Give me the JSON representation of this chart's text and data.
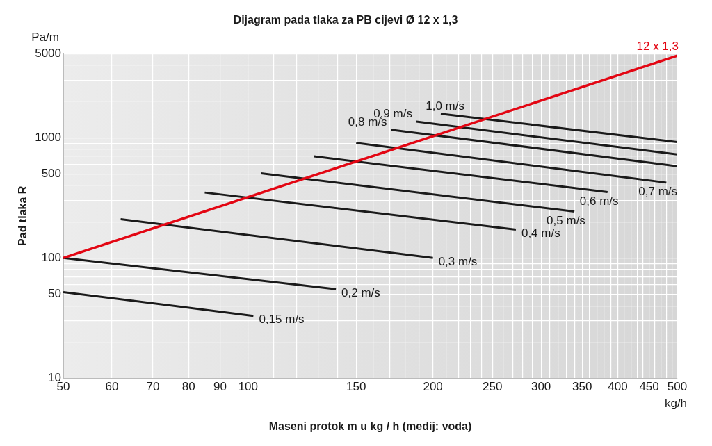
{
  "chart_data": {
    "type": "line",
    "title": "Dijagram pada tlaka za PB cijevi Ø 12 x 1,3",
    "xlabel": "Maseni protok m u kg / h (medij: voda)",
    "ylabel": "Pad tlaka R",
    "annotations": [
      "Pa/m",
      "kg/h"
    ],
    "log": "xy",
    "grid": true,
    "legend": false,
    "marker": "none",
    "line_style": "solid",
    "xlim": [
      50,
      500
    ],
    "ylim": [
      10,
      5000
    ],
    "xticks": [
      50,
      60,
      70,
      80,
      90,
      100,
      {
        "value": 110,
        "label": null
      },
      {
        "value": 120,
        "label": null
      },
      {
        "value": 130,
        "label": null
      },
      {
        "value": 140,
        "label": null
      },
      150,
      {
        "value": 160,
        "label": null
      },
      {
        "value": 170,
        "label": null
      },
      {
        "value": 180,
        "label": null
      },
      {
        "value": 190,
        "label": null
      },
      200,
      {
        "value": 210,
        "label": null
      },
      {
        "value": 220,
        "label": null
      },
      {
        "value": 230,
        "label": null
      },
      {
        "value": 240,
        "label": null
      },
      250,
      {
        "value": 260,
        "label": null
      },
      {
        "value": 270,
        "label": null
      },
      {
        "value": 280,
        "label": null
      },
      {
        "value": 290,
        "label": null
      },
      300,
      {
        "value": 310,
        "label": null
      },
      {
        "value": 320,
        "label": null
      },
      {
        "value": 330,
        "label": null
      },
      {
        "value": 340,
        "label": null
      },
      350,
      {
        "value": 360,
        "label": null
      },
      {
        "value": 370,
        "label": null
      },
      {
        "value": 380,
        "label": null
      },
      {
        "value": 390,
        "label": null
      },
      400,
      {
        "value": 410,
        "label": null
      },
      {
        "value": 420,
        "label": null
      },
      {
        "value": 430,
        "label": null
      },
      {
        "value": 440,
        "label": null
      },
      450,
      {
        "value": 460,
        "label": null
      },
      {
        "value": 470,
        "label": null
      },
      {
        "value": 480,
        "label": null
      },
      {
        "value": 490,
        "label": null
      },
      500
    ],
    "yticks": [
      10,
      {
        "value": 20,
        "label": null
      },
      {
        "value": 30,
        "label": null
      },
      {
        "value": 40,
        "label": null
      },
      50,
      {
        "value": 60,
        "label": null
      },
      {
        "value": 70,
        "label": null
      },
      {
        "value": 80,
        "label": null
      },
      {
        "value": 90,
        "label": null
      },
      100,
      {
        "value": 200,
        "label": null
      },
      {
        "value": 300,
        "label": null
      },
      {
        "value": 400,
        "label": null
      },
      500,
      {
        "value": 600,
        "label": null
      },
      {
        "value": 700,
        "label": null
      },
      {
        "value": 800,
        "label": null
      },
      {
        "value": 900,
        "label": null
      },
      1000,
      {
        "value": 2000,
        "label": null
      },
      {
        "value": 3000,
        "label": null
      },
      {
        "value": 4000,
        "label": null
      },
      5000
    ],
    "series": [
      {
        "name": "12 x 1,3",
        "color": "#e30613",
        "x": [
          50,
          500
        ],
        "values": [
          100,
          4800
        ]
      },
      {
        "name": "0,15 m/s",
        "color": "#1a1a1a",
        "x": [
          50,
          102
        ],
        "values": [
          52,
          33
        ]
      },
      {
        "name": "0,2 m/s",
        "color": "#1a1a1a",
        "x": [
          50,
          139
        ],
        "values": [
          100,
          55
        ]
      },
      {
        "name": "0,3 m/s",
        "color": "#1a1a1a",
        "x": [
          62,
          200
        ],
        "values": [
          210,
          100
        ]
      },
      {
        "name": "0,4 m/s",
        "color": "#1a1a1a",
        "x": [
          85,
          273
        ],
        "values": [
          350,
          172
        ]
      },
      {
        "name": "0,5 m/s",
        "color": "#1a1a1a",
        "x": [
          105,
          340
        ],
        "values": [
          505,
          243
        ]
      },
      {
        "name": "0,6 m/s",
        "color": "#1a1a1a",
        "x": [
          128,
          385
        ],
        "values": [
          700,
          353
        ]
      },
      {
        "name": "0,7 m/s",
        "color": "#1a1a1a",
        "x": [
          150,
          480
        ],
        "values": [
          905,
          423
        ]
      },
      {
        "name": "0,8 m/s",
        "color": "#1a1a1a",
        "x": [
          171,
          500
        ],
        "values": [
          1165,
          580
        ]
      },
      {
        "name": "0,9 m/s",
        "color": "#1a1a1a",
        "x": [
          188,
          500
        ],
        "values": [
          1360,
          725
        ]
      },
      {
        "name": "1,0 m/s",
        "color": "#1a1a1a",
        "x": [
          206,
          500
        ],
        "values": [
          1580,
          920
        ]
      }
    ]
  }
}
